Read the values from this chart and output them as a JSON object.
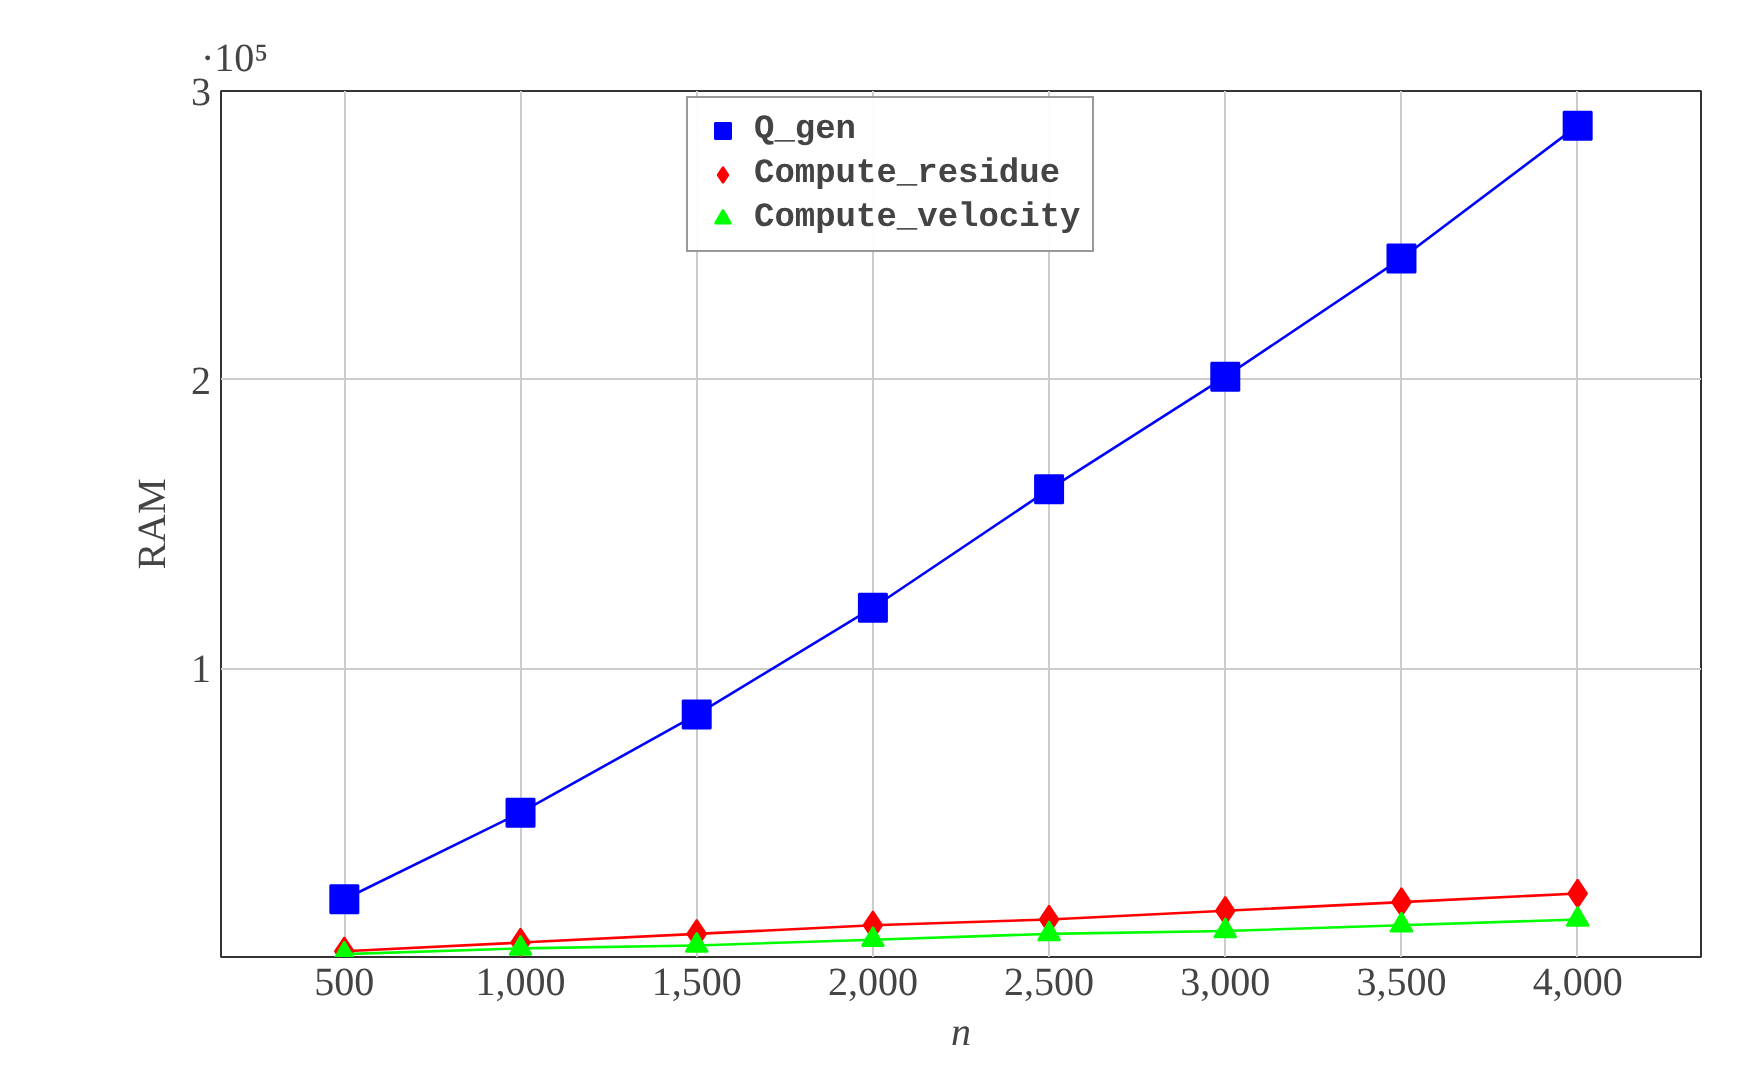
{
  "chart_data": {
    "type": "line",
    "xlabel": "n",
    "ylabel": "RAM",
    "x": [
      500,
      1000,
      1500,
      2000,
      2500,
      3000,
      3500,
      4000
    ],
    "series": [
      {
        "name": "Q_gen",
        "color": "#0000ff",
        "marker": "square",
        "values": [
          0.2,
          0.5,
          0.84,
          1.21,
          1.62,
          2.01,
          2.42,
          2.88
        ]
      },
      {
        "name": "Compute_residue",
        "color": "#ff0000",
        "marker": "diamond",
        "values": [
          0.02,
          0.05,
          0.08,
          0.11,
          0.13,
          0.16,
          0.19,
          0.22
        ]
      },
      {
        "name": "Compute_velocity",
        "color": "#00ff00",
        "marker": "triangle",
        "values": [
          0.01,
          0.03,
          0.04,
          0.06,
          0.08,
          0.09,
          0.11,
          0.13
        ]
      }
    ],
    "xlim": [
      150,
      4350
    ],
    "ylim": [
      0,
      3
    ],
    "xticks": [
      {
        "value": 500,
        "label": "500"
      },
      {
        "value": 1000,
        "label": "1,000"
      },
      {
        "value": 1500,
        "label": "1,500"
      },
      {
        "value": 2000,
        "label": "2,000"
      },
      {
        "value": 2500,
        "label": "2,500"
      },
      {
        "value": 3000,
        "label": "3,000"
      },
      {
        "value": 3500,
        "label": "3,500"
      },
      {
        "value": 4000,
        "label": "4,000"
      }
    ],
    "yticks": [
      1,
      2,
      3
    ],
    "annotations": [
      "·10⁵"
    ],
    "grid": true,
    "legend": "top left"
  }
}
